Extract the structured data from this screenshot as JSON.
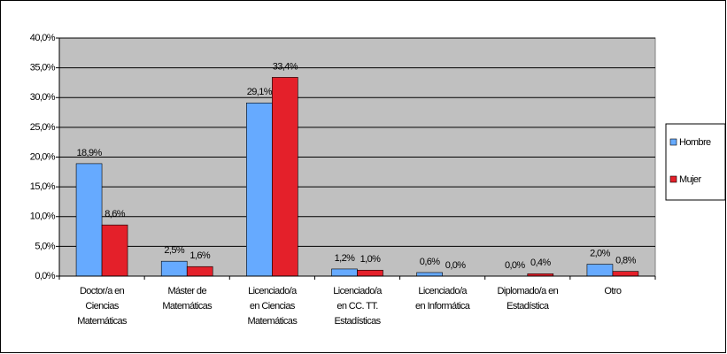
{
  "chart_data": {
    "type": "bar",
    "categories": [
      [
        "Doctor/a en",
        "Ciencias",
        "Matemáticas"
      ],
      [
        "Máster de",
        "Matemáticas"
      ],
      [
        "Licenciado/a",
        "en Ciencias",
        "Matemáticas"
      ],
      [
        "Licenciado/a",
        "en CC. TT.",
        "Estadísticas"
      ],
      [
        "Licenciado/a",
        "en Informática"
      ],
      [
        "Diplomado/a en",
        "Estadística"
      ],
      [
        "Otro"
      ]
    ],
    "series": [
      {
        "name": "Hombre",
        "color": "#66aaff",
        "values": [
          18.9,
          2.5,
          29.1,
          1.2,
          0.6,
          0.0,
          2.0
        ],
        "value_labels": [
          "18,9%",
          "2,5%",
          "29,1%",
          "1,2%",
          "0,6%",
          "0,0%",
          "2,0%"
        ]
      },
      {
        "name": "Mujer",
        "color": "#e4202a",
        "values": [
          8.6,
          1.6,
          33.4,
          1.0,
          0.0,
          0.4,
          0.8
        ],
        "value_labels": [
          "8,6%",
          "1,6%",
          "33,4%",
          "1,0%",
          "0,0%",
          "0,4%",
          "0,8%"
        ]
      }
    ],
    "ylim": [
      0,
      40
    ],
    "yticks": [
      {
        "value": 0,
        "label": "0,0%"
      },
      {
        "value": 5,
        "label": "5,0%"
      },
      {
        "value": 10,
        "label": "10,0%"
      },
      {
        "value": 15,
        "label": "15,0%"
      },
      {
        "value": 20,
        "label": "20,0%"
      },
      {
        "value": 25,
        "label": "25,0%"
      },
      {
        "value": 30,
        "label": "30,0%"
      },
      {
        "value": 35,
        "label": "35,0%"
      },
      {
        "value": 40,
        "label": "40,0%"
      }
    ],
    "grid": true,
    "legend": "right",
    "plot_background": "#c0c0c0"
  }
}
